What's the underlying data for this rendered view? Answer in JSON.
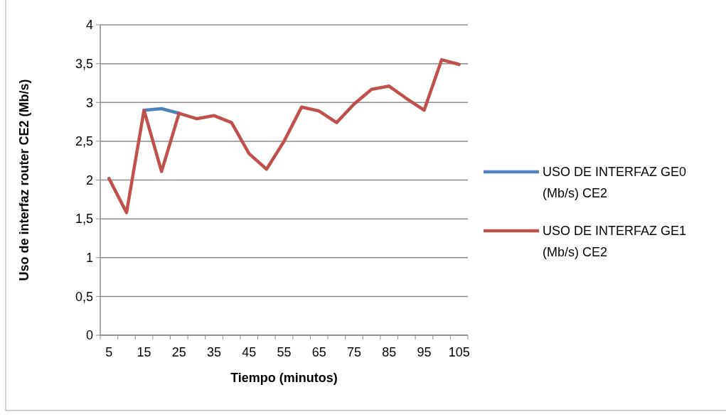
{
  "chart_data": {
    "type": "line",
    "xlabel": "Tiempo (minutos)",
    "ylabel": "Uso de interfaz router CE2 (Mb/s)",
    "categories": [
      "5",
      null,
      "15",
      null,
      "25",
      null,
      "35",
      null,
      "45",
      null,
      "55",
      null,
      "65",
      null,
      "75",
      null,
      "85",
      null,
      "95",
      null,
      "105"
    ],
    "series": [
      {
        "name": "USO DE INTERFAZ GE0 (Mb/s) CE2",
        "color": "#4f81bd",
        "values": [
          null,
          null,
          2.9,
          2.92,
          2.86,
          null,
          null,
          null,
          null,
          null,
          null,
          null,
          null,
          null,
          null,
          null,
          null,
          null,
          null,
          null,
          null
        ]
      },
      {
        "name": "USO DE INTERFAZ GE1 (Mb/s) CE2",
        "color": "#c0504d",
        "values": [
          2.02,
          1.58,
          2.9,
          2.11,
          2.86,
          2.79,
          2.83,
          2.74,
          2.34,
          2.14,
          2.5,
          2.94,
          2.89,
          2.74,
          2.98,
          3.17,
          3.21,
          3.05,
          2.9,
          3.55,
          3.49
        ]
      }
    ],
    "ylim": [
      0,
      4
    ],
    "yticks": [
      0,
      {
        "value": 0.5,
        "label": "0,5"
      },
      1,
      {
        "value": 1.5,
        "label": "1,5"
      },
      2,
      {
        "value": 2.5,
        "label": "2,5"
      },
      3,
      {
        "value": 3.5,
        "label": "3,5"
      },
      4
    ],
    "grid": "y",
    "legend": "right",
    "marker": "none",
    "line_style": "solid"
  }
}
